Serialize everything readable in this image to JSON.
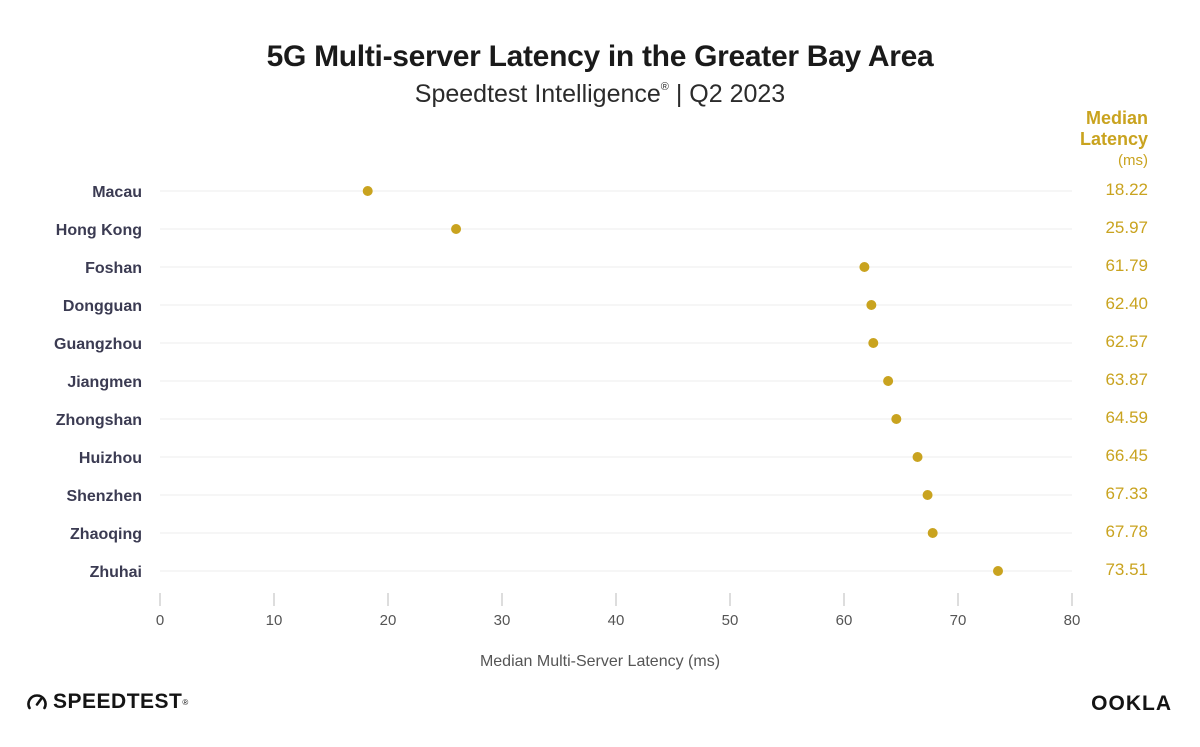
{
  "header": {
    "title": "5G Multi-server Latency in the Greater Bay Area",
    "subtitle_main": "Speedtest Intelligence",
    "subtitle_mark": "®",
    "subtitle_rest": " | Q2 2023",
    "median_label_1": "Median",
    "median_label_2": "Latency",
    "median_unit": "(ms)"
  },
  "colors": {
    "accent": "#c9a31f",
    "label": "#3b3b52",
    "grid": "#eeeeee",
    "axis": "#bbbbbb",
    "tick": "#555555"
  },
  "chart_data": {
    "type": "scatter",
    "title": "5G Multi-server Latency in the Greater Bay Area",
    "subtitle": "Speedtest Intelligence® | Q2 2023",
    "xlabel": "Median Multi-Server Latency (ms)",
    "ylabel": "",
    "xlim": [
      0,
      80
    ],
    "xticks": [
      0,
      10,
      20,
      30,
      40,
      50,
      60,
      70,
      80
    ],
    "grid": true,
    "categories": [
      "Macau",
      "Hong Kong",
      "Foshan",
      "Dongguan",
      "Guangzhou",
      "Jiangmen",
      "Zhongshan",
      "Huizhou",
      "Shenzhen",
      "Zhaoqing",
      "Zhuhai"
    ],
    "values": [
      18.22,
      25.97,
      61.79,
      62.4,
      62.57,
      63.87,
      64.59,
      66.45,
      67.33,
      67.78,
      73.51
    ],
    "value_labels": [
      "18.22",
      "25.97",
      "61.79",
      "62.40",
      "62.57",
      "63.87",
      "64.59",
      "66.45",
      "67.33",
      "67.78",
      "73.51"
    ]
  },
  "footer": {
    "brand_left": "SPEEDTEST",
    "brand_left_mark": "®",
    "brand_right": "OOKLA"
  }
}
